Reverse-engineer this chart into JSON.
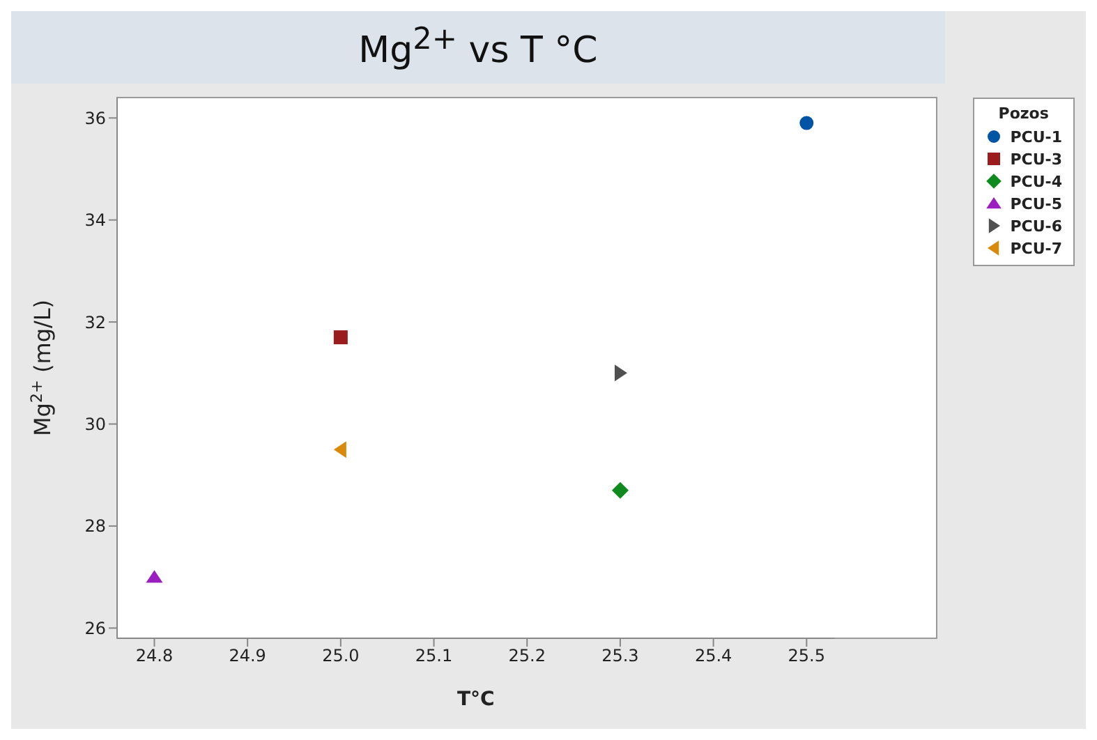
{
  "chart_data": {
    "type": "scatter",
    "title": "Mg$^{2+}$ vs T °C",
    "xlabel": "T°C",
    "ylabel": "Mg$^{2+}$  (mg/L)",
    "legend_title": "Pozos",
    "legend": "right",
    "xlim": [
      24.76,
      25.53
    ],
    "xticks": [
      {
        "value": 24.8,
        "label": "24.8"
      },
      {
        "value": 24.9,
        "label": "24.9"
      },
      {
        "value": 25,
        "label": "25.0"
      },
      {
        "value": 25.1,
        "label": "25.1"
      },
      {
        "value": 25.2,
        "label": "25.2"
      },
      {
        "value": 25.3,
        "label": "25.3"
      },
      {
        "value": 25.4,
        "label": "25.4"
      },
      {
        "value": 25.5,
        "label": "25.5"
      }
    ],
    "ylim": [
      25.8,
      36.4
    ],
    "yticks": [
      26,
      28,
      30,
      32,
      34,
      36
    ],
    "series": [
      {
        "name": "PCU-1",
        "color": "#0054a6",
        "marker": "circle",
        "x": [
          25.5
        ],
        "values": [
          35.9
        ]
      },
      {
        "name": "PCU-3",
        "color": "#9b1c1c",
        "marker": "square",
        "x": [
          25.0
        ],
        "values": [
          31.7
        ]
      },
      {
        "name": "PCU-4",
        "color": "#0e8a1e",
        "marker": "diamond",
        "x": [
          25.3
        ],
        "values": [
          28.7
        ]
      },
      {
        "name": "PCU-5",
        "color": "#9b1fc0",
        "marker": "triangle",
        "x": [
          24.8
        ],
        "values": [
          27.0
        ]
      },
      {
        "name": "PCU-6",
        "color": "#505050",
        "marker": "triangle-right",
        "x": [
          25.3
        ],
        "values": [
          31.0
        ]
      },
      {
        "name": "PCU-7",
        "color": "#d98a0a",
        "marker": "triangle-left",
        "x": [
          25.0
        ],
        "values": [
          29.5
        ]
      }
    ]
  }
}
